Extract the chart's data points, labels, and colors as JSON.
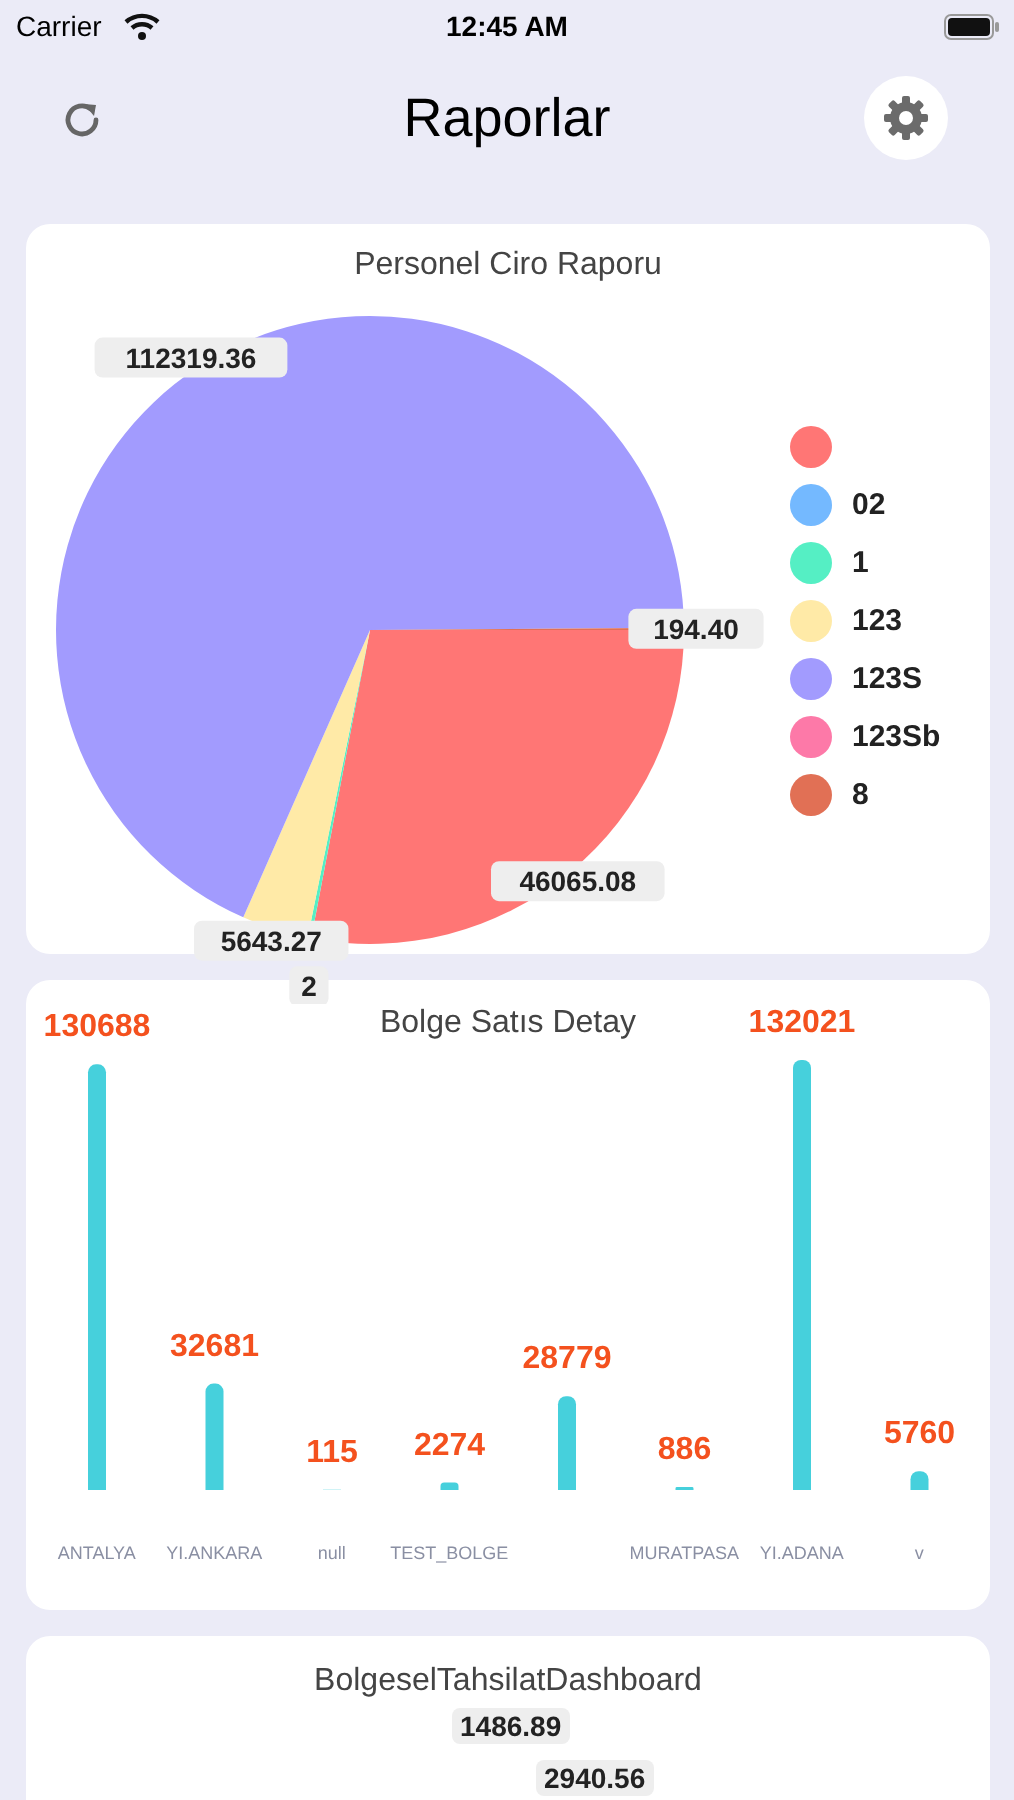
{
  "chart_data": [
    {
      "type": "other",
      "title": "Raporlar",
      "annotations": [
        "Carrier",
        "12:45 AM"
      ]
    },
    {
      "type": "pie",
      "title": "Personel Ciro Raporu",
      "categories": [
        null,
        "02",
        "1",
        "123",
        "123S",
        "123Sb",
        "8"
      ],
      "values": [
        46065.08,
        2,
        300,
        5643.27,
        112319.36,
        0,
        194.4
      ],
      "value_labels": [
        "46065.08",
        "2",
        null,
        "5643.27",
        "112319.36",
        null,
        "194.40"
      ],
      "colors": [
        "#ff7675",
        "#74b9ff",
        "#55efc4",
        "#ffeaa7",
        "#a29bfe",
        "#fd79a8",
        "#e17055"
      ],
      "legend": "right"
    },
    {
      "type": "bar",
      "title": "Bolge Satıs Detay",
      "categories": [
        "ANTALYA",
        "YI.ANKARA",
        "null",
        "TEST_BOLGE",
        null,
        "MURATPASA",
        "YI.ADANA",
        "v"
      ],
      "values": [
        130688,
        32681,
        115,
        2274,
        28779,
        886,
        132021,
        5760
      ],
      "color": "#46d0dc",
      "data_labels": true
    },
    {
      "type": "other",
      "title": "BolgeselTahsilatDashboard",
      "annotations": [
        "1486.89",
        "2940.56"
      ]
    }
  ]
}
